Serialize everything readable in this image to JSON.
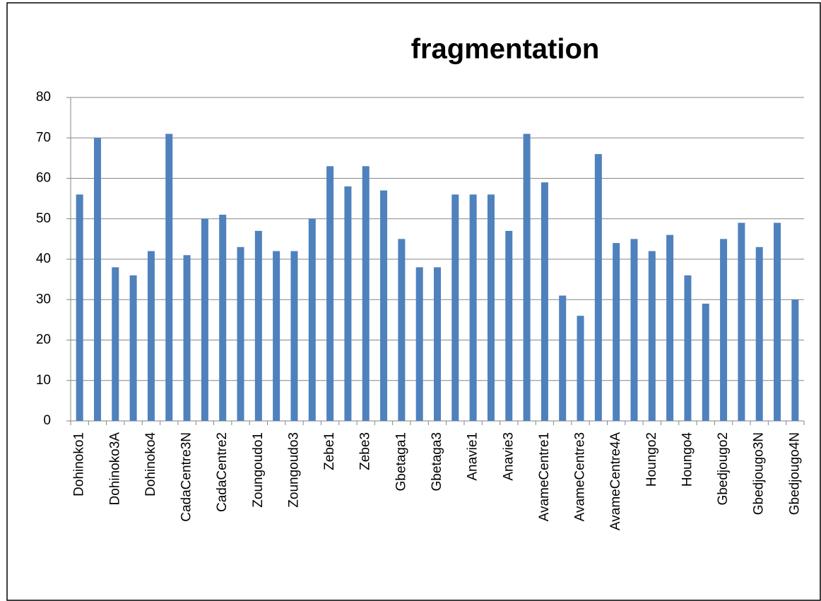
{
  "chart_data": {
    "type": "bar",
    "title": "fragmentation",
    "categories": [
      "Dohinoko1",
      null,
      "Dohinoko3A",
      null,
      "Dohinoko4",
      null,
      "CadaCentre3N",
      null,
      "CadaCentre2",
      null,
      "Zoungoudo1",
      null,
      "Zoungoudo3",
      null,
      "Zebe1",
      null,
      "Zebe3",
      null,
      "Gbetaga1",
      null,
      "Gbetaga3",
      null,
      "Anavie1",
      null,
      "Anavie3",
      null,
      "AvameCentre1",
      null,
      "AvameCentre3",
      null,
      "AvameCentre4A",
      null,
      "Houngo2",
      null,
      "Houngo4",
      null,
      "Gbedjougo2",
      null,
      "Gbedjougo3N",
      null,
      "Gbedjougo4N"
    ],
    "values": [
      56,
      70,
      38,
      36,
      42,
      71,
      41,
      50,
      51,
      43,
      47,
      42,
      42,
      50,
      63,
      58,
      63,
      57,
      45,
      38,
      38,
      56,
      56,
      56,
      47,
      71,
      59,
      31,
      26,
      66,
      44,
      45,
      42,
      46,
      36,
      29,
      45,
      49,
      43,
      49,
      30
    ],
    "color": "#4f81bd",
    "ylim": [
      0,
      80
    ],
    "yticks": [
      0,
      10,
      20,
      30,
      40,
      50,
      60,
      70,
      80
    ],
    "grid": true
  }
}
